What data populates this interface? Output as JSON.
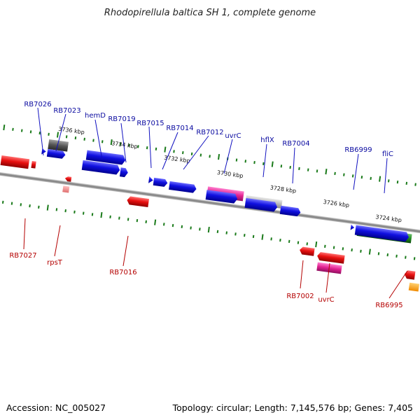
{
  "title": "Rhodopirellula baltica SH 1, complete genome",
  "footer": {
    "accession": "Accession: NC_005027",
    "summary": "Topology: circular; Length: 7,145,576 bp; Genes: 7,405"
  },
  "colors": {
    "forward": "#1010e0",
    "reverse": "#e81010",
    "tick": "#1a7a1a",
    "axis": "#888888",
    "top_label": "#0a0aa0",
    "bottom_label": "#b40000"
  },
  "scale_labels": [
    "3736 kbp",
    "3734 kbp",
    "3732 kbp",
    "3730 kbp",
    "3728 kbp",
    "3726 kbp",
    "3724 kbp"
  ],
  "top_labels": [
    "RB7026",
    "RB7023",
    "hemD",
    "RB7019",
    "RB7015",
    "RB7014",
    "RB7012",
    "uvrC",
    "hflX",
    "RB7004",
    "RB6999",
    "fliC"
  ],
  "bottom_labels": [
    "RB7027",
    "rpsT",
    "RB7016",
    "RB7002",
    "uvrC",
    "RB6995"
  ]
}
